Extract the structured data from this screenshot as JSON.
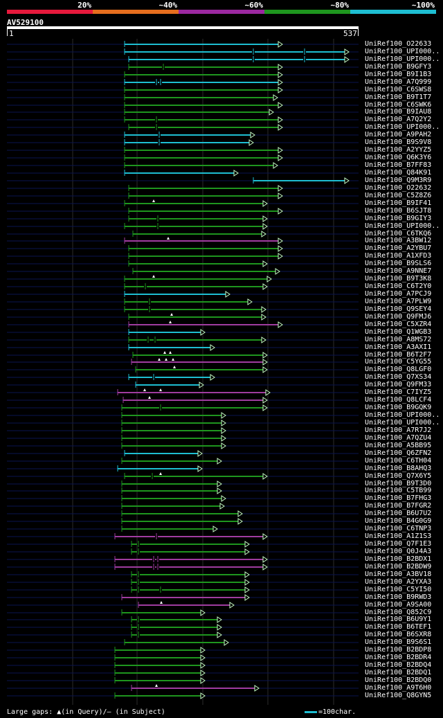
{
  "legend": [
    {
      "label": "20%",
      "color": "#e6193c"
    },
    {
      "label": "~40%",
      "color": "#e66e1e"
    },
    {
      "label": "~60%",
      "color": "#9b28a0"
    },
    {
      "label": "~80%",
      "color": "#1e961e"
    },
    {
      "label": "~100%",
      "color": "#1ebed2"
    }
  ],
  "query": {
    "name": "AV529100",
    "start": "1",
    "end": "537"
  },
  "colors": {
    "cyan": "#1ebed2",
    "green": "#1e961e",
    "magenta": "#a03ca0",
    "grid": "#2d2d2d",
    "baseline": "#0a1450"
  },
  "hits": [
    {
      "name": "UniRef100_O22633",
      "c": "cyan",
      "s": 180,
      "e": 402,
      "m": []
    },
    {
      "name": "UniRef100_UPI000..",
      "c": "cyan",
      "s": 180,
      "e": 498,
      "m": [
        366,
        440
      ]
    },
    {
      "name": "UniRef100_UPI000..",
      "c": "cyan",
      "s": 186,
      "e": 498,
      "m": [
        366,
        440
      ]
    },
    {
      "name": "UniRef100_B9GFY3",
      "c": "green",
      "s": 186,
      "e": 402,
      "m": [
        236
      ]
    },
    {
      "name": "UniRef100_B9I1B3",
      "c": "green",
      "s": 180,
      "e": 402,
      "m": []
    },
    {
      "name": "UniRef100_A7Q999",
      "c": "cyan",
      "s": 180,
      "e": 402,
      "m": [
        226,
        232
      ]
    },
    {
      "name": "UniRef100_C6SWS8",
      "c": "green",
      "s": 180,
      "e": 402,
      "m": []
    },
    {
      "name": "UniRef100_B9T1T7",
      "c": "green",
      "s": 180,
      "e": 395,
      "m": []
    },
    {
      "name": "UniRef100_C6SWK6",
      "c": "green",
      "s": 180,
      "e": 402,
      "m": []
    },
    {
      "name": "UniRef100_B9IAU8",
      "c": "green",
      "s": 180,
      "e": 389,
      "m": []
    },
    {
      "name": "UniRef100_A7Q2Y2",
      "c": "green",
      "s": 180,
      "e": 402,
      "m": [
        226
      ]
    },
    {
      "name": "UniRef100_UPI000..",
      "c": "green",
      "s": 186,
      "e": 402,
      "m": [
        226
      ]
    },
    {
      "name": "UniRef100_A9PAH2",
      "c": "cyan",
      "s": 180,
      "e": 362,
      "m": [
        230
      ]
    },
    {
      "name": "UniRef100_B9S9V8",
      "c": "cyan",
      "s": 180,
      "e": 360,
      "m": [
        230
      ]
    },
    {
      "name": "UniRef100_A2YYZ5",
      "c": "green",
      "s": 180,
      "e": 402,
      "m": []
    },
    {
      "name": "UniRef100_Q6K3Y6",
      "c": "green",
      "s": 180,
      "e": 402,
      "m": []
    },
    {
      "name": "UniRef100_B7FF83",
      "c": "green",
      "s": 180,
      "e": 395,
      "m": []
    },
    {
      "name": "UniRef100_Q84K91",
      "c": "cyan",
      "s": 180,
      "e": 338,
      "m": []
    },
    {
      "name": "UniRef100_Q9M3R9",
      "c": "cyan",
      "s": 366,
      "e": 498,
      "m": []
    },
    {
      "name": "UniRef100_O22632",
      "c": "green",
      "s": 186,
      "e": 402,
      "m": []
    },
    {
      "name": "UniRef100_C5Z8Z6",
      "c": "green",
      "s": 186,
      "e": 402,
      "m": []
    },
    {
      "name": "UniRef100_B9IF41",
      "c": "green",
      "s": 180,
      "e": 380,
      "m": [],
      "t": [
        222
      ]
    },
    {
      "name": "UniRef100_B6SJT8",
      "c": "green",
      "s": 186,
      "e": 402,
      "m": []
    },
    {
      "name": "UniRef100_B9GIY3",
      "c": "green",
      "s": 186,
      "e": 380,
      "m": [
        228
      ]
    },
    {
      "name": "UniRef100_UPI000..",
      "c": "green",
      "s": 180,
      "e": 380,
      "m": [
        228
      ]
    },
    {
      "name": "UniRef100_C6TKQ6",
      "c": "green",
      "s": 192,
      "e": 378,
      "m": []
    },
    {
      "name": "UniRef100_A3BW12",
      "c": "magenta",
      "s": 180,
      "e": 402,
      "m": [],
      "t": [
        243
      ]
    },
    {
      "name": "UniRef100_A2YBU7",
      "c": "green",
      "s": 186,
      "e": 402,
      "m": []
    },
    {
      "name": "UniRef100_A1XFD3",
      "c": "green",
      "s": 186,
      "e": 402,
      "m": []
    },
    {
      "name": "UniRef100_B9SLS6",
      "c": "green",
      "s": 186,
      "e": 380,
      "m": []
    },
    {
      "name": "UniRef100_A9NNE7",
      "c": "green",
      "s": 192,
      "e": 398,
      "m": []
    },
    {
      "name": "UniRef100_B9T3K8",
      "c": "green",
      "s": 180,
      "e": 386,
      "m": [],
      "t": [
        222
      ]
    },
    {
      "name": "UniRef100_C6T2Y0",
      "c": "green",
      "s": 180,
      "e": 380,
      "m": [
        210
      ]
    },
    {
      "name": "UniRef100_A7PCJ9",
      "c": "cyan",
      "s": 180,
      "e": 326,
      "m": []
    },
    {
      "name": "UniRef100_A7PLW9",
      "c": "green",
      "s": 180,
      "e": 358,
      "m": [
        216
      ]
    },
    {
      "name": "UniRef100_Q9SEY4",
      "c": "green",
      "s": 180,
      "e": 378,
      "m": [
        216
      ]
    },
    {
      "name": "UniRef100_Q9FMJ6",
      "c": "green",
      "s": 186,
      "e": 378,
      "m": [],
      "t": [
        248
      ]
    },
    {
      "name": "UniRef100_C5XZR4",
      "c": "magenta",
      "s": 186,
      "e": 402,
      "m": [],
      "t": [
        246
      ]
    },
    {
      "name": "UniRef100_Q1WGB3",
      "c": "cyan",
      "s": 186,
      "e": 290,
      "m": []
    },
    {
      "name": "UniRef100_A8MS72",
      "c": "green",
      "s": 186,
      "e": 378,
      "m": [
        214,
        224
      ]
    },
    {
      "name": "UniRef100_A3AXI1",
      "c": "cyan",
      "s": 186,
      "e": 304,
      "m": []
    },
    {
      "name": "UniRef100_B6T2F7",
      "c": "green",
      "s": 192,
      "e": 380,
      "m": [],
      "t": [
        238,
        246
      ]
    },
    {
      "name": "UniRef100_C5YG55",
      "c": "magenta",
      "s": 190,
      "e": 380,
      "m": [],
      "t": [
        230,
        240,
        250
      ]
    },
    {
      "name": "UniRef100_Q8LGF0",
      "c": "green",
      "s": 196,
      "e": 380,
      "m": [],
      "t": [
        252
      ]
    },
    {
      "name": "UniRef100_Q7XS34",
      "c": "cyan",
      "s": 186,
      "e": 304,
      "m": [
        222
      ]
    },
    {
      "name": "UniRef100_Q9FM33",
      "c": "cyan",
      "s": 196,
      "e": 288,
      "m": []
    },
    {
      "name": "UniRef100_C7IYZ5",
      "c": "magenta",
      "s": 170,
      "e": 384,
      "m": [],
      "t": [
        209,
        232
      ]
    },
    {
      "name": "UniRef100_Q8LCF4",
      "c": "magenta",
      "s": 178,
      "e": 380,
      "m": [],
      "t": [
        216
      ]
    },
    {
      "name": "UniRef100_B9GQK9",
      "c": "green",
      "s": 176,
      "e": 380,
      "m": [
        232
      ]
    },
    {
      "name": "UniRef100_UPI000..",
      "c": "green",
      "s": 176,
      "e": 320,
      "m": []
    },
    {
      "name": "UniRef100_UPI000..",
      "c": "green",
      "s": 176,
      "e": 320,
      "m": []
    },
    {
      "name": "UniRef100_A7R7J2",
      "c": "green",
      "s": 176,
      "e": 320,
      "m": []
    },
    {
      "name": "UniRef100_A7QZU4",
      "c": "green",
      "s": 176,
      "e": 320,
      "m": []
    },
    {
      "name": "UniRef100_A5BB95",
      "c": "green",
      "s": 176,
      "e": 320,
      "m": []
    },
    {
      "name": "UniRef100_Q6ZFN2",
      "c": "cyan",
      "s": 180,
      "e": 286,
      "m": []
    },
    {
      "name": "UniRef100_C6TH04",
      "c": "green",
      "s": 176,
      "e": 314,
      "m": []
    },
    {
      "name": "UniRef100_B8AHQ3",
      "c": "cyan",
      "s": 170,
      "e": 286,
      "m": []
    },
    {
      "name": "UniRef100_Q7X6Y5",
      "c": "green",
      "s": 180,
      "e": 380,
      "m": [
        220
      ],
      "t": [
        232
      ]
    },
    {
      "name": "UniRef100_B9T3D0",
      "c": "green",
      "s": 176,
      "e": 314,
      "m": []
    },
    {
      "name": "UniRef100_C5TB99",
      "c": "green",
      "s": 176,
      "e": 314,
      "m": []
    },
    {
      "name": "UniRef100_B7FHG3",
      "c": "green",
      "s": 176,
      "e": 320,
      "m": []
    },
    {
      "name": "UniRef100_B7FGR2",
      "c": "green",
      "s": 176,
      "e": 318,
      "m": []
    },
    {
      "name": "UniRef100_B6U7U2",
      "c": "green",
      "s": 176,
      "e": 344,
      "m": []
    },
    {
      "name": "UniRef100_B4G0G9",
      "c": "green",
      "s": 176,
      "e": 344,
      "m": []
    },
    {
      "name": "UniRef100_C6TNP3",
      "c": "green",
      "s": 176,
      "e": 308,
      "m": []
    },
    {
      "name": "UniRef100_A1Z1S3",
      "c": "magenta",
      "s": 166,
      "e": 380,
      "m": [
        226
      ]
    },
    {
      "name": "UniRef100_Q7F1E3",
      "c": "green",
      "s": 190,
      "e": 354,
      "m": [
        200
      ]
    },
    {
      "name": "UniRef100_Q0J4A3",
      "c": "green",
      "s": 190,
      "e": 354,
      "m": [
        200
      ]
    },
    {
      "name": "UniRef100_B2BDX1",
      "c": "magenta",
      "s": 166,
      "e": 380,
      "m": [
        222,
        228
      ]
    },
    {
      "name": "UniRef100_B2BDW9",
      "c": "magenta",
      "s": 166,
      "e": 380,
      "m": [
        222,
        228
      ]
    },
    {
      "name": "UniRef100_A3BV18",
      "c": "green",
      "s": 190,
      "e": 354,
      "m": [
        200
      ]
    },
    {
      "name": "UniRef100_A2YXA3",
      "c": "green",
      "s": 190,
      "e": 354,
      "m": [
        200
      ]
    },
    {
      "name": "UniRef100_C5YI50",
      "c": "green",
      "s": 190,
      "e": 354,
      "m": [
        200,
        232
      ]
    },
    {
      "name": "UniRef100_B9RWD3",
      "c": "magenta",
      "s": 176,
      "e": 354,
      "m": []
    },
    {
      "name": "UniRef100_A9SA00",
      "c": "magenta",
      "s": 200,
      "e": 332,
      "m": [],
      "t": [
        233
      ]
    },
    {
      "name": "UniRef100_Q852C9",
      "c": "green",
      "s": 176,
      "e": 290,
      "m": []
    },
    {
      "name": "UniRef100_B6U9Y1",
      "c": "green",
      "s": 190,
      "e": 314,
      "m": [
        200
      ]
    },
    {
      "name": "UniRef100_B6TEF1",
      "c": "green",
      "s": 190,
      "e": 314,
      "m": [
        200
      ]
    },
    {
      "name": "UniRef100_B6SXR8",
      "c": "green",
      "s": 190,
      "e": 314,
      "m": [
        200
      ]
    },
    {
      "name": "UniRef100_B9S6S1",
      "c": "green",
      "s": 180,
      "e": 324,
      "m": []
    },
    {
      "name": "UniRef100_B2BDP8",
      "c": "green",
      "s": 166,
      "e": 290,
      "m": []
    },
    {
      "name": "UniRef100_B2BDR4",
      "c": "green",
      "s": 166,
      "e": 290,
      "m": []
    },
    {
      "name": "UniRef100_B2BDQ4",
      "c": "green",
      "s": 166,
      "e": 290,
      "m": []
    },
    {
      "name": "UniRef100_B2BDQ1",
      "c": "green",
      "s": 166,
      "e": 290,
      "m": []
    },
    {
      "name": "UniRef100_B2BDQ0",
      "c": "green",
      "s": 166,
      "e": 290,
      "m": []
    },
    {
      "name": "UniRef100_A9T6H0",
      "c": "magenta",
      "s": 190,
      "e": 368,
      "m": [],
      "t": [
        226
      ]
    },
    {
      "name": "UniRef100_Q8GYN5",
      "c": "green",
      "s": 166,
      "e": 290,
      "m": []
    }
  ],
  "footer": {
    "large_gaps": "Large gaps: ▲(in Query)/– (in Subject)",
    "scale": "=100char."
  }
}
